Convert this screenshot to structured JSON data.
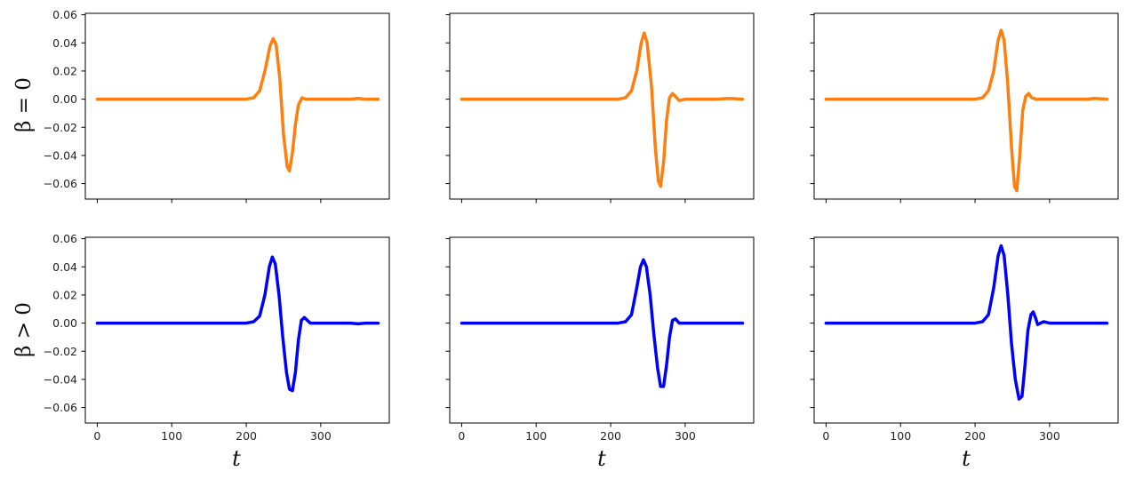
{
  "figure": {
    "row_labels": [
      "β = 0",
      "β > 0"
    ],
    "xlabel": "t"
  },
  "chart_data": [
    {
      "type": "line",
      "row": 0,
      "col": 0,
      "color": "#ff7f0e",
      "xlim": [
        -16,
        392
      ],
      "ylim": [
        -0.071,
        0.061
      ],
      "xticks": [
        0,
        100,
        200,
        300
      ],
      "yticks": [
        0.06,
        0.04,
        0.02,
        0.0,
        -0.02,
        -0.04,
        -0.06
      ],
      "xticklabels_shown": false,
      "yticklabels_shown": true,
      "x": [
        0,
        200,
        210,
        218,
        225,
        232,
        236,
        240,
        245,
        250,
        255,
        258,
        262,
        266,
        270,
        275,
        280,
        300,
        340,
        350,
        360,
        377
      ],
      "y": [
        0.0,
        0.0,
        0.001,
        0.006,
        0.02,
        0.038,
        0.043,
        0.039,
        0.015,
        -0.025,
        -0.048,
        -0.051,
        -0.038,
        -0.018,
        -0.004,
        0.001,
        0.0,
        0.0,
        0.0,
        0.0005,
        0.0,
        0.0
      ]
    },
    {
      "type": "line",
      "row": 0,
      "col": 1,
      "color": "#ff7f0e",
      "xlim": [
        -16,
        392
      ],
      "ylim": [
        -0.071,
        0.061
      ],
      "xticks": [
        0,
        100,
        200,
        300
      ],
      "yticks": [
        0.06,
        0.04,
        0.02,
        0.0,
        -0.02,
        -0.04,
        -0.06
      ],
      "xticklabels_shown": false,
      "yticklabels_shown": false,
      "x": [
        0,
        210,
        220,
        228,
        235,
        241,
        245,
        249,
        255,
        260,
        264,
        267,
        271,
        275,
        279,
        283,
        287,
        292,
        300,
        320,
        340,
        360,
        377
      ],
      "y": [
        0.0,
        0.0,
        0.001,
        0.006,
        0.02,
        0.04,
        0.047,
        0.04,
        0.008,
        -0.035,
        -0.058,
        -0.062,
        -0.045,
        -0.015,
        0.001,
        0.004,
        0.002,
        -0.001,
        0.0,
        0.0,
        0.0,
        0.0005,
        0.0
      ]
    },
    {
      "type": "line",
      "row": 0,
      "col": 2,
      "color": "#ff7f0e",
      "xlim": [
        -16,
        392
      ],
      "ylim": [
        -0.071,
        0.061
      ],
      "xticks": [
        0,
        100,
        200,
        300
      ],
      "yticks": [
        0.06,
        0.04,
        0.02,
        0.0,
        -0.02,
        -0.04,
        -0.06
      ],
      "xticklabels_shown": false,
      "yticklabels_shown": false,
      "x": [
        0,
        200,
        210,
        218,
        225,
        231,
        235,
        239,
        244,
        249,
        253,
        256,
        260,
        264,
        268,
        272,
        276,
        282,
        290,
        320,
        350,
        360,
        377
      ],
      "y": [
        0.0,
        0.0,
        0.001,
        0.006,
        0.02,
        0.042,
        0.049,
        0.042,
        0.01,
        -0.035,
        -0.062,
        -0.065,
        -0.04,
        -0.008,
        0.002,
        0.004,
        0.001,
        0.0,
        0.0,
        0.0,
        0.0,
        0.0005,
        0.0
      ]
    },
    {
      "type": "line",
      "row": 1,
      "col": 0,
      "color": "#0000ff",
      "xlim": [
        -16,
        392
      ],
      "ylim": [
        -0.071,
        0.061
      ],
      "xticks": [
        0,
        100,
        200,
        300
      ],
      "yticks": [
        0.06,
        0.04,
        0.02,
        0.0,
        -0.02,
        -0.04,
        -0.06
      ],
      "xticklabels_shown": true,
      "yticklabels_shown": true,
      "x": [
        0,
        200,
        210,
        218,
        225,
        231,
        235,
        239,
        244,
        249,
        254,
        258,
        262,
        266,
        270,
        274,
        278,
        282,
        286,
        295,
        340,
        350,
        360,
        377
      ],
      "y": [
        0.0,
        0.0,
        0.001,
        0.005,
        0.02,
        0.04,
        0.047,
        0.042,
        0.02,
        -0.01,
        -0.035,
        -0.047,
        -0.048,
        -0.035,
        -0.012,
        0.002,
        0.004,
        0.002,
        0.0,
        0.0,
        0.0,
        -0.0005,
        0.0,
        0.0
      ]
    },
    {
      "type": "line",
      "row": 1,
      "col": 1,
      "color": "#0000ff",
      "xlim": [
        -16,
        392
      ],
      "ylim": [
        -0.071,
        0.061
      ],
      "xticks": [
        0,
        100,
        200,
        300
      ],
      "yticks": [
        0.06,
        0.04,
        0.02,
        0.0,
        -0.02,
        -0.04,
        -0.06
      ],
      "xticklabels_shown": true,
      "yticklabels_shown": false,
      "x": [
        0,
        210,
        220,
        228,
        235,
        240,
        244,
        248,
        253,
        258,
        263,
        267,
        271,
        275,
        279,
        283,
        287,
        292,
        300,
        340,
        360,
        377
      ],
      "y": [
        0.0,
        0.0,
        0.001,
        0.006,
        0.025,
        0.04,
        0.045,
        0.04,
        0.02,
        -0.008,
        -0.032,
        -0.045,
        -0.045,
        -0.03,
        -0.01,
        0.002,
        0.003,
        0.0,
        0.0,
        0.0,
        0.0,
        0.0
      ]
    },
    {
      "type": "line",
      "row": 1,
      "col": 2,
      "color": "#0000ff",
      "xlim": [
        -16,
        392
      ],
      "ylim": [
        -0.071,
        0.061
      ],
      "xticks": [
        0,
        100,
        200,
        300
      ],
      "yticks": [
        0.06,
        0.04,
        0.02,
        0.0,
        -0.02,
        -0.04,
        -0.06
      ],
      "xticklabels_shown": true,
      "yticklabels_shown": false,
      "x": [
        0,
        200,
        210,
        218,
        225,
        231,
        235,
        239,
        244,
        249,
        254,
        259,
        263,
        267,
        271,
        275,
        278,
        281,
        284,
        288,
        292,
        300,
        340,
        377
      ],
      "y": [
        0.0,
        0.0,
        0.001,
        0.006,
        0.025,
        0.048,
        0.055,
        0.048,
        0.02,
        -0.015,
        -0.04,
        -0.054,
        -0.052,
        -0.03,
        -0.005,
        0.006,
        0.008,
        0.004,
        -0.001,
        0.0,
        0.001,
        0.0,
        0.0,
        0.0
      ]
    }
  ]
}
